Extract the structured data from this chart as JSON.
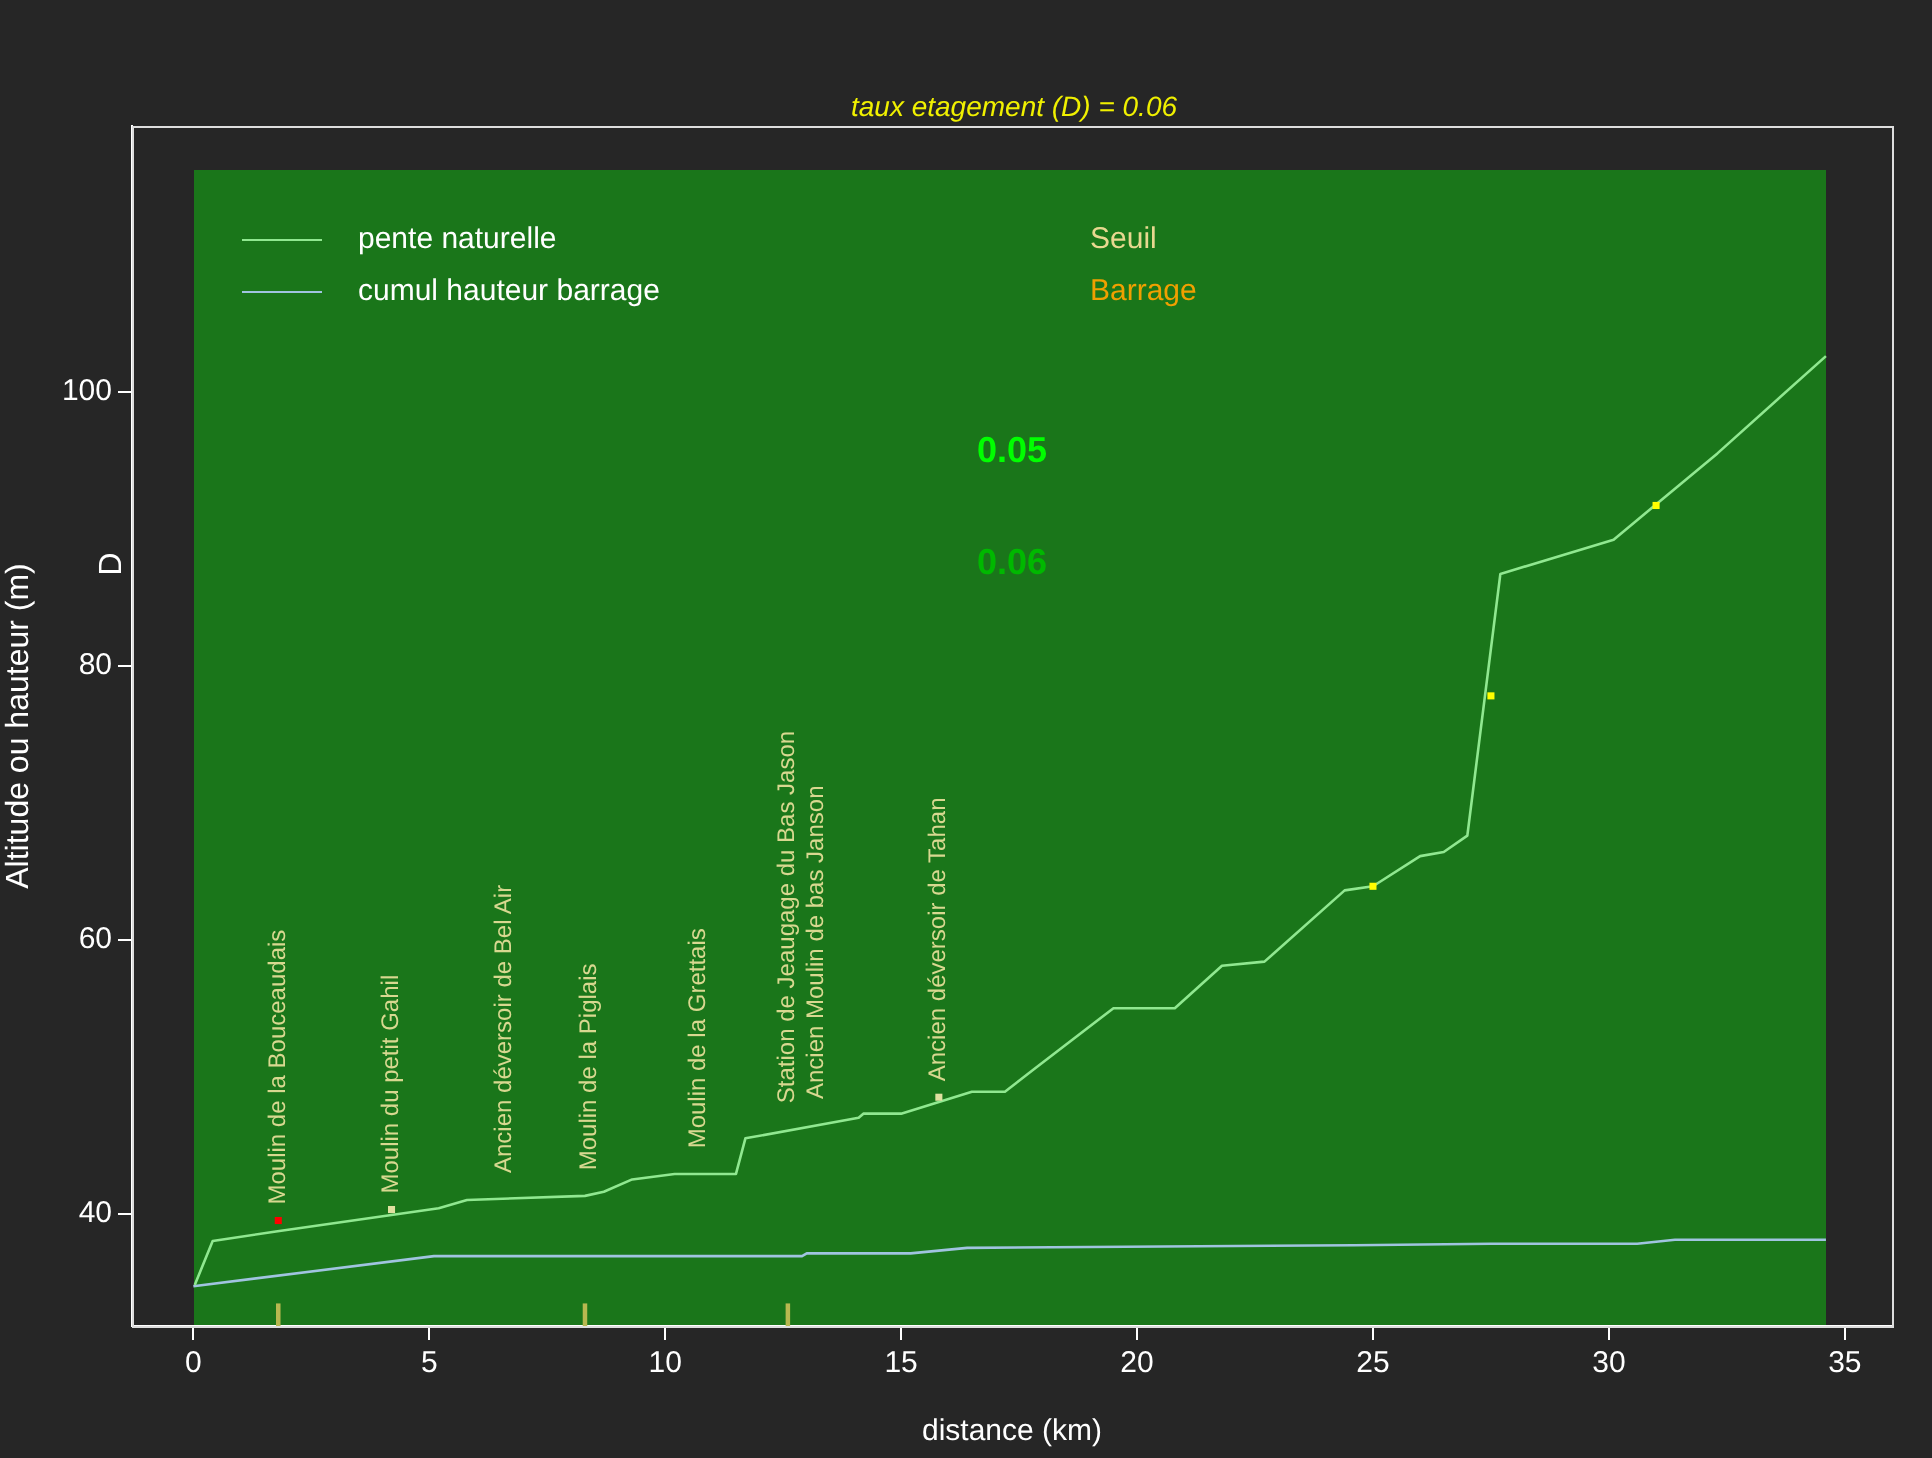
{
  "chart_data": {
    "type": "line",
    "title": "taux etagement (D) = 0.06",
    "xlabel": "distance (km)",
    "ylabel": "Altitude ou hauteur (m)",
    "xlim": [
      -1.3,
      36
    ],
    "ylim": [
      31.8,
      119.4
    ],
    "xticks": [
      0,
      5,
      10,
      15,
      20,
      25,
      30,
      35
    ],
    "yticks": [
      40,
      60,
      80,
      100
    ],
    "grid": false,
    "legend": "top left",
    "series": [
      {
        "name": "pente naturelle",
        "color": "#90e890",
        "x": [
          0.03,
          0.41,
          1.75,
          5.2,
          5.8,
          8.3,
          8.7,
          9.3,
          10.2,
          11.5,
          11.7,
          14.1,
          14.2,
          15.0,
          16.5,
          17.2,
          17.8,
          19.5,
          20.8,
          21.8,
          22.7,
          24.4,
          25.0,
          26.0,
          26.5,
          27.0,
          27.7,
          30.1,
          32.3,
          34.6
        ],
        "values": [
          34.8,
          38.0,
          38.7,
          40.4,
          41.0,
          41.3,
          41.6,
          42.5,
          42.9,
          42.9,
          45.5,
          47.0,
          47.3,
          47.3,
          48.9,
          48.9,
          50.5,
          55.0,
          55.0,
          58.1,
          58.4,
          63.6,
          63.9,
          66.1,
          66.4,
          67.6,
          86.7,
          89.2,
          95.5,
          102.6
        ]
      },
      {
        "name": "cumul hauteur barrage",
        "color": "#a0c4e0",
        "x": [
          0,
          5.1,
          12.9,
          13.0,
          15.2,
          16.4,
          24.6,
          27.5,
          30.6,
          31.4,
          34.6
        ],
        "values": [
          34.7,
          36.9,
          36.9,
          37.1,
          37.1,
          37.5,
          37.7,
          37.8,
          37.8,
          38.1,
          38.1
        ]
      },
      {
        "type": "scatter",
        "marker": "square",
        "x": [
          1.8,
          4.2,
          15.8,
          25.0,
          27.5,
          31.0
        ],
        "values": [
          39.5,
          40.3,
          48.5,
          63.9,
          77.8,
          91.7
        ],
        "colors": [
          "#ff0000",
          "#e0e0a0",
          "#e0e0a0",
          "#ffff00",
          "#ffff00",
          "#ffff00"
        ]
      },
      {
        "type": "bar",
        "color": "#b8b850",
        "x": [
          1.8,
          8.3,
          12.6
        ],
        "base": [
          31.8,
          31.8,
          31.8
        ],
        "values": [
          1.6,
          1.6,
          1.6
        ]
      }
    ],
    "annotations": [
      {
        "text": "Moulin de la Bouceaudais",
        "x": 1.8,
        "y": 39.5
      },
      {
        "text": "Moulin du petit Gahil",
        "x": 4.2,
        "y": 40.3
      },
      {
        "text": "Ancien déversoir de Bel Air",
        "x": 6.6,
        "y": 41.8
      },
      {
        "text": "Moulin de la Piglais",
        "x": 8.4,
        "y": 42.0
      },
      {
        "text": "Moulin de la Grettais",
        "x": 10.7,
        "y": 43.6
      },
      {
        "text": "Station de Jeaugage du Bas Jason",
        "x": 12.6,
        "y": 46.9
      },
      {
        "text": "Ancien Moulin de bas Janson",
        "x": 13.2,
        "y": 47.2
      },
      {
        "text": "Ancien déversoir de Tahan",
        "x": 15.8,
        "y": 48.5
      },
      "Seuil",
      "Barrage",
      "0.05",
      "0.06",
      "D"
    ]
  }
}
